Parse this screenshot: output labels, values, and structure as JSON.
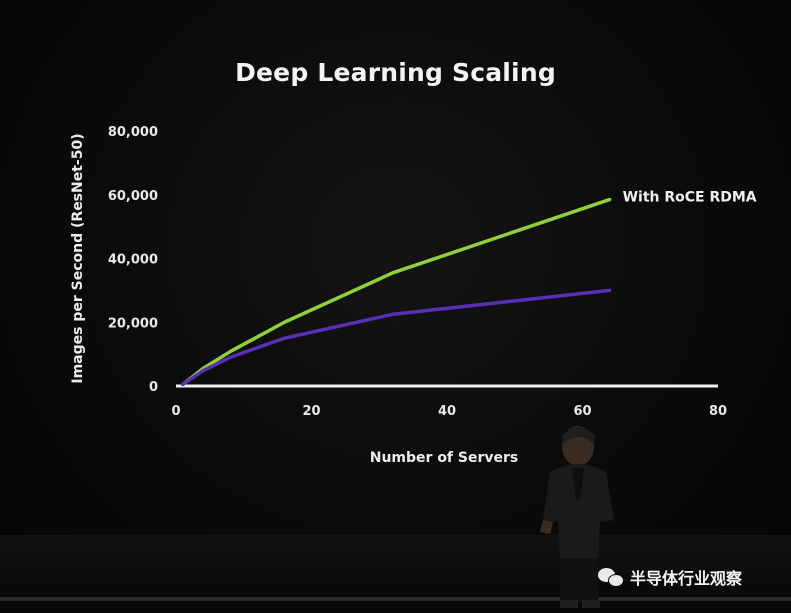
{
  "slide": {
    "title": "Deep Learning Scaling",
    "watermark": "半导体行业观察",
    "watermark_icon": "wechat-icon"
  },
  "colors": {
    "background": "#0b0b0b",
    "green_series": "#8fd13a",
    "purple_series": "#5a2fb8",
    "axis": "#f0f0f0",
    "text": "#f2f2f2"
  },
  "chart_data": {
    "type": "line",
    "title": "Deep Learning Scaling",
    "xlabel": "Number of Servers",
    "ylabel": "Images per Second (ResNet-50)",
    "xlim": [
      0,
      80
    ],
    "ylim": [
      0,
      80000
    ],
    "x_ticks": [
      "0",
      "20",
      "40",
      "60",
      "80"
    ],
    "y_ticks": [
      "0",
      "20,000",
      "40,000",
      "60,000",
      "80,000"
    ],
    "x_tick_values": [
      0,
      20,
      40,
      60,
      80
    ],
    "y_tick_values": [
      0,
      20000,
      40000,
      60000,
      80000
    ],
    "grid": false,
    "series": [
      {
        "name": "With RoCE RDMA",
        "color": "#8fd13a",
        "x": [
          1,
          4,
          8,
          16,
          32,
          64
        ],
        "y": [
          500,
          5500,
          10800,
          20000,
          35500,
          58500
        ]
      },
      {
        "name": "",
        "color": "#5a2fb8",
        "x": [
          1,
          4,
          8,
          16,
          32,
          64
        ],
        "y": [
          500,
          4800,
          9000,
          15000,
          22500,
          30000
        ]
      }
    ]
  }
}
